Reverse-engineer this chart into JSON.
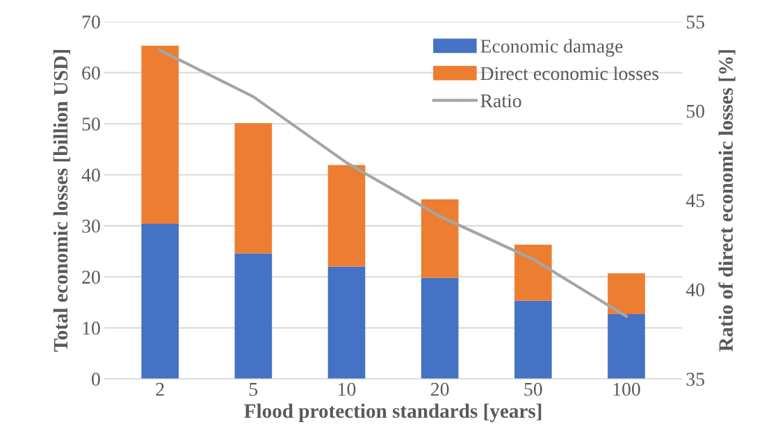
{
  "chart_data": {
    "type": "bar",
    "stacked": true,
    "xlabel": "Flood protection standards [years]",
    "ylabel": "Total economic losses [billion USD]",
    "y2label": "Ratio of direct economic losses [%]",
    "categories": [
      "2",
      "5",
      "10",
      "20",
      "50",
      "100"
    ],
    "series": [
      {
        "name": "Economic damage",
        "color": "#4472c4",
        "values": [
          30.4,
          24.6,
          22.0,
          19.8,
          15.3,
          12.7
        ]
      },
      {
        "name": "Direct economic losses",
        "color": "#ed7d31",
        "values": [
          34.9,
          25.5,
          19.9,
          15.4,
          11.0,
          8.0
        ]
      },
      {
        "name": "Ratio",
        "type": "line",
        "axis": "y2",
        "color": "#a5a5a5",
        "values": [
          53.4,
          50.8,
          47.1,
          44.1,
          41.7,
          38.5
        ]
      }
    ],
    "ylim": [
      0,
      70
    ],
    "yticks": [
      0,
      10,
      20,
      30,
      40,
      50,
      60,
      70
    ],
    "y2lim": [
      35,
      55
    ],
    "y2ticks": [
      35,
      40,
      45,
      50,
      55
    ],
    "grid": "y",
    "legend": "top right"
  }
}
